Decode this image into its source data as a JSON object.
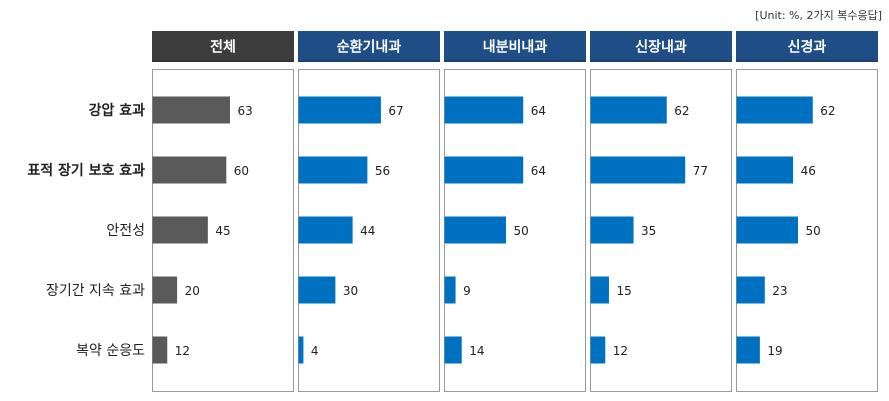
{
  "unit_note": "[Unit: %, 2가지 복수응답]",
  "colors": {
    "total_header": "#3d3d3d",
    "dept_header": "#1f4d86",
    "total_bar": "#5a5a5a",
    "dept_bar": "#0070c0",
    "panel_border": "#9a9a9a"
  },
  "chart_data": {
    "type": "bar",
    "orientation": "horizontal",
    "categories": [
      "강압 효과",
      "표적 장기 보호 효과",
      "안전성",
      "장기간 지속 효과",
      "복약 순응도"
    ],
    "bold_categories": [
      0,
      1
    ],
    "xlim": [
      0,
      100
    ],
    "series": [
      {
        "name": "전체",
        "values": [
          63,
          60,
          45,
          20,
          12
        ]
      },
      {
        "name": "순환기내과",
        "values": [
          67,
          56,
          44,
          30,
          4
        ]
      },
      {
        "name": "내분비내과",
        "values": [
          64,
          64,
          50,
          9,
          14
        ]
      },
      {
        "name": "신장내과",
        "values": [
          62,
          77,
          35,
          15,
          12
        ]
      },
      {
        "name": "신경과",
        "values": [
          62,
          46,
          50,
          23,
          19
        ]
      }
    ]
  }
}
